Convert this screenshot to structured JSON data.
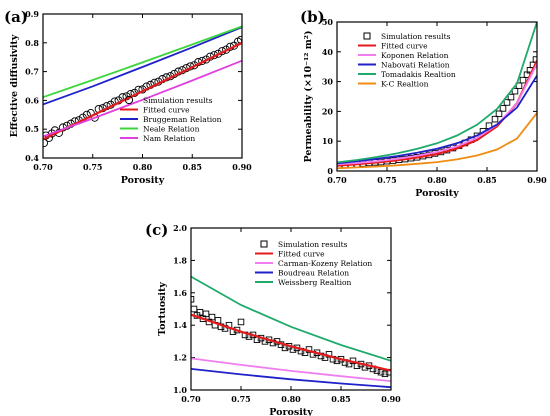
{
  "chart_data": [
    {
      "panel_label": "(a)",
      "type": "scatter",
      "xlabel": "Porosity",
      "ylabel": "Effective diffusivity",
      "xlim": [
        0.7,
        0.9
      ],
      "ylim": [
        0.4,
        0.9
      ],
      "xticks": [
        "0.70",
        "0.75",
        "0.80",
        "0.85",
        "0.90"
      ],
      "yticks": [
        "0.4",
        "0.5",
        "0.6",
        "0.7",
        "0.8",
        "0.9"
      ],
      "legend_position": "bottom-right",
      "series": [
        {
          "name": "Simulation results",
          "kind": "scatter",
          "marker": "circle",
          "color": "#000000",
          "x": [
            0.701,
            0.703,
            0.706,
            0.709,
            0.712,
            0.716,
            0.72,
            0.724,
            0.728,
            0.732,
            0.736,
            0.74,
            0.744,
            0.748,
            0.752,
            0.756,
            0.76,
            0.764,
            0.768,
            0.772,
            0.776,
            0.78,
            0.784,
            0.788,
            0.792,
            0.796,
            0.8,
            0.804,
            0.808,
            0.812,
            0.816,
            0.82,
            0.824,
            0.828,
            0.832,
            0.836,
            0.84,
            0.844,
            0.848,
            0.852,
            0.856,
            0.86,
            0.864,
            0.868,
            0.872,
            0.876,
            0.88,
            0.884,
            0.888,
            0.892,
            0.896,
            0.899
          ],
          "y": [
            0.452,
            0.478,
            0.47,
            0.485,
            0.496,
            0.487,
            0.506,
            0.512,
            0.519,
            0.527,
            0.531,
            0.54,
            0.55,
            0.556,
            0.54,
            0.57,
            0.573,
            0.58,
            0.585,
            0.596,
            0.6,
            0.611,
            0.614,
            0.622,
            0.626,
            0.637,
            0.638,
            0.648,
            0.654,
            0.661,
            0.665,
            0.674,
            0.68,
            0.684,
            0.692,
            0.7,
            0.705,
            0.712,
            0.718,
            0.722,
            0.733,
            0.737,
            0.742,
            0.752,
            0.757,
            0.762,
            0.771,
            0.776,
            0.786,
            0.79,
            0.804,
            0.81
          ]
        },
        {
          "name": "Fitted curve",
          "kind": "line",
          "color": "#e41a1c",
          "x": [
            0.7,
            0.75,
            0.8,
            0.85,
            0.9
          ],
          "y": [
            0.465,
            0.548,
            0.632,
            0.715,
            0.8
          ]
        },
        {
          "name": "Bruggeman Relation",
          "kind": "line",
          "color": "#1f22c8",
          "x": [
            0.7,
            0.75,
            0.8,
            0.85,
            0.9
          ],
          "y": [
            0.586,
            0.649,
            0.716,
            0.784,
            0.854
          ]
        },
        {
          "name": "Neale Relation",
          "kind": "line",
          "color": "#3cd63c",
          "x": [
            0.7,
            0.75,
            0.8,
            0.85,
            0.9
          ],
          "y": [
            0.611,
            0.671,
            0.732,
            0.794,
            0.857
          ]
        },
        {
          "name": "Nam Relation",
          "kind": "line",
          "color": "#e040e0",
          "x": [
            0.7,
            0.75,
            0.8,
            0.85,
            0.9
          ],
          "y": [
            0.475,
            0.537,
            0.602,
            0.669,
            0.738
          ]
        }
      ]
    },
    {
      "panel_label": "(b)",
      "type": "scatter",
      "xlabel": "Porosity",
      "ylabel": "Permeability (×10⁻¹² m²)",
      "xlim": [
        0.7,
        0.9
      ],
      "ylim": [
        0,
        50
      ],
      "xticks": [
        "0.70",
        "0.75",
        "0.80",
        "0.85",
        "0.90"
      ],
      "yticks": [
        "0",
        "10",
        "20",
        "30",
        "40",
        "50"
      ],
      "legend_position": "top-left",
      "series": [
        {
          "name": "Simulation results",
          "kind": "scatter",
          "marker": "square",
          "color": "#000000",
          "x": [
            0.702,
            0.708,
            0.714,
            0.72,
            0.726,
            0.732,
            0.738,
            0.744,
            0.75,
            0.756,
            0.762,
            0.768,
            0.774,
            0.78,
            0.786,
            0.792,
            0.798,
            0.804,
            0.81,
            0.816,
            0.822,
            0.828,
            0.834,
            0.84,
            0.846,
            0.852,
            0.858,
            0.862,
            0.866,
            0.87,
            0.874,
            0.878,
            0.882,
            0.886,
            0.89,
            0.893,
            0.896,
            0.899
          ],
          "y": [
            1.8,
            2.0,
            2.1,
            2.3,
            2.5,
            2.7,
            2.9,
            3.0,
            3.3,
            3.5,
            3.8,
            4.0,
            4.3,
            4.6,
            5.0,
            5.4,
            5.9,
            6.4,
            7.0,
            7.7,
            8.5,
            9.4,
            10.5,
            11.8,
            13.3,
            15.2,
            17.4,
            19.2,
            21.0,
            23.0,
            24.8,
            26.8,
            28.6,
            30.5,
            32.3,
            33.8,
            35.6,
            37.4
          ]
        },
        {
          "name": "Fitted curve",
          "kind": "line",
          "color": "#e41a1c",
          "x": [
            0.7,
            0.72,
            0.74,
            0.76,
            0.78,
            0.8,
            0.82,
            0.84,
            0.86,
            0.88,
            0.9
          ],
          "y": [
            1.8,
            2.3,
            2.9,
            3.6,
            4.5,
            5.7,
            7.6,
            10.4,
            15.0,
            22.8,
            37.0
          ]
        },
        {
          "name": "Koponen Relation",
          "kind": "line",
          "color": "#f07ef0",
          "x": [
            0.7,
            0.72,
            0.74,
            0.76,
            0.78,
            0.8,
            0.82,
            0.84,
            0.86,
            0.88,
            0.9
          ],
          "y": [
            2.2,
            2.7,
            3.3,
            4.1,
            5.1,
            6.4,
            8.3,
            11.1,
            15.5,
            22.8,
            36.0
          ]
        },
        {
          "name": "Nabovati Relation",
          "kind": "line",
          "color": "#1f22c8",
          "x": [
            0.7,
            0.72,
            0.74,
            0.76,
            0.78,
            0.8,
            0.82,
            0.84,
            0.86,
            0.88,
            0.9
          ],
          "y": [
            2.6,
            3.3,
            4.1,
            5.0,
            6.1,
            7.5,
            9.3,
            11.9,
            15.6,
            21.3,
            32.0
          ]
        },
        {
          "name": "Tomadakis Realtion",
          "kind": "line",
          "color": "#1faa6c",
          "x": [
            0.7,
            0.72,
            0.74,
            0.76,
            0.78,
            0.8,
            0.82,
            0.84,
            0.86,
            0.88,
            0.9
          ],
          "y": [
            2.9,
            3.7,
            4.7,
            5.9,
            7.4,
            9.3,
            11.9,
            15.5,
            20.8,
            29.4,
            50.0
          ]
        },
        {
          "name": "K-C Realtion",
          "kind": "line",
          "color": "#f08c12",
          "x": [
            0.7,
            0.72,
            0.74,
            0.76,
            0.78,
            0.8,
            0.82,
            0.84,
            0.86,
            0.88,
            0.9
          ],
          "y": [
            0.9,
            1.2,
            1.5,
            1.9,
            2.4,
            3.0,
            3.9,
            5.2,
            7.2,
            10.9,
            19.5
          ]
        }
      ]
    },
    {
      "panel_label": "(c)",
      "type": "scatter",
      "xlabel": "Porosity",
      "ylabel": "Tortuosity",
      "xlim": [
        0.7,
        0.9
      ],
      "ylim": [
        1.0,
        2.0
      ],
      "xticks": [
        "0.70",
        "0.75",
        "0.80",
        "0.85",
        "0.90"
      ],
      "yticks": [
        "1.0",
        "1.2",
        "1.4",
        "1.6",
        "1.8",
        "2.0"
      ],
      "legend_position": "top-right",
      "series": [
        {
          "name": "Simulation results",
          "kind": "scatter",
          "marker": "square",
          "color": "#000000",
          "x": [
            0.7,
            0.703,
            0.706,
            0.709,
            0.712,
            0.715,
            0.718,
            0.721,
            0.724,
            0.727,
            0.73,
            0.734,
            0.738,
            0.742,
            0.746,
            0.75,
            0.754,
            0.758,
            0.762,
            0.766,
            0.77,
            0.774,
            0.778,
            0.782,
            0.786,
            0.79,
            0.794,
            0.798,
            0.802,
            0.806,
            0.81,
            0.814,
            0.818,
            0.822,
            0.826,
            0.83,
            0.834,
            0.838,
            0.842,
            0.846,
            0.85,
            0.854,
            0.858,
            0.862,
            0.866,
            0.87,
            0.874,
            0.878,
            0.882,
            0.886,
            0.89,
            0.894,
            0.898
          ],
          "y": [
            1.56,
            1.5,
            1.46,
            1.48,
            1.44,
            1.47,
            1.42,
            1.45,
            1.4,
            1.43,
            1.39,
            1.38,
            1.4,
            1.36,
            1.37,
            1.42,
            1.34,
            1.33,
            1.34,
            1.31,
            1.32,
            1.3,
            1.31,
            1.29,
            1.3,
            1.28,
            1.26,
            1.27,
            1.25,
            1.26,
            1.24,
            1.23,
            1.25,
            1.22,
            1.23,
            1.21,
            1.2,
            1.22,
            1.19,
            1.18,
            1.19,
            1.17,
            1.16,
            1.18,
            1.15,
            1.16,
            1.14,
            1.15,
            1.13,
            1.12,
            1.11,
            1.1,
            1.11
          ]
        },
        {
          "name": "Fitted curve",
          "kind": "line",
          "color": "#e41a1c",
          "x": [
            0.7,
            0.75,
            0.8,
            0.85,
            0.9
          ],
          "y": [
            1.465,
            1.36,
            1.27,
            1.19,
            1.12
          ]
        },
        {
          "name": "Carman-Kozeny Relation",
          "kind": "line",
          "color": "#f07ef0",
          "x": [
            0.7,
            0.75,
            0.8,
            0.85,
            0.9
          ],
          "y": [
            1.195,
            1.155,
            1.118,
            1.085,
            1.055
          ]
        },
        {
          "name": "Boudreau Relation",
          "kind": "line",
          "color": "#1f22c8",
          "x": [
            0.7,
            0.75,
            0.8,
            0.85,
            0.9
          ],
          "y": [
            1.13,
            1.096,
            1.066,
            1.04,
            1.017
          ]
        },
        {
          "name": "Weissberg Realtion",
          "kind": "line",
          "color": "#1faa6c",
          "x": [
            0.7,
            0.75,
            0.8,
            0.85,
            0.9
          ],
          "y": [
            1.7,
            1.525,
            1.39,
            1.278,
            1.18
          ]
        }
      ]
    }
  ]
}
